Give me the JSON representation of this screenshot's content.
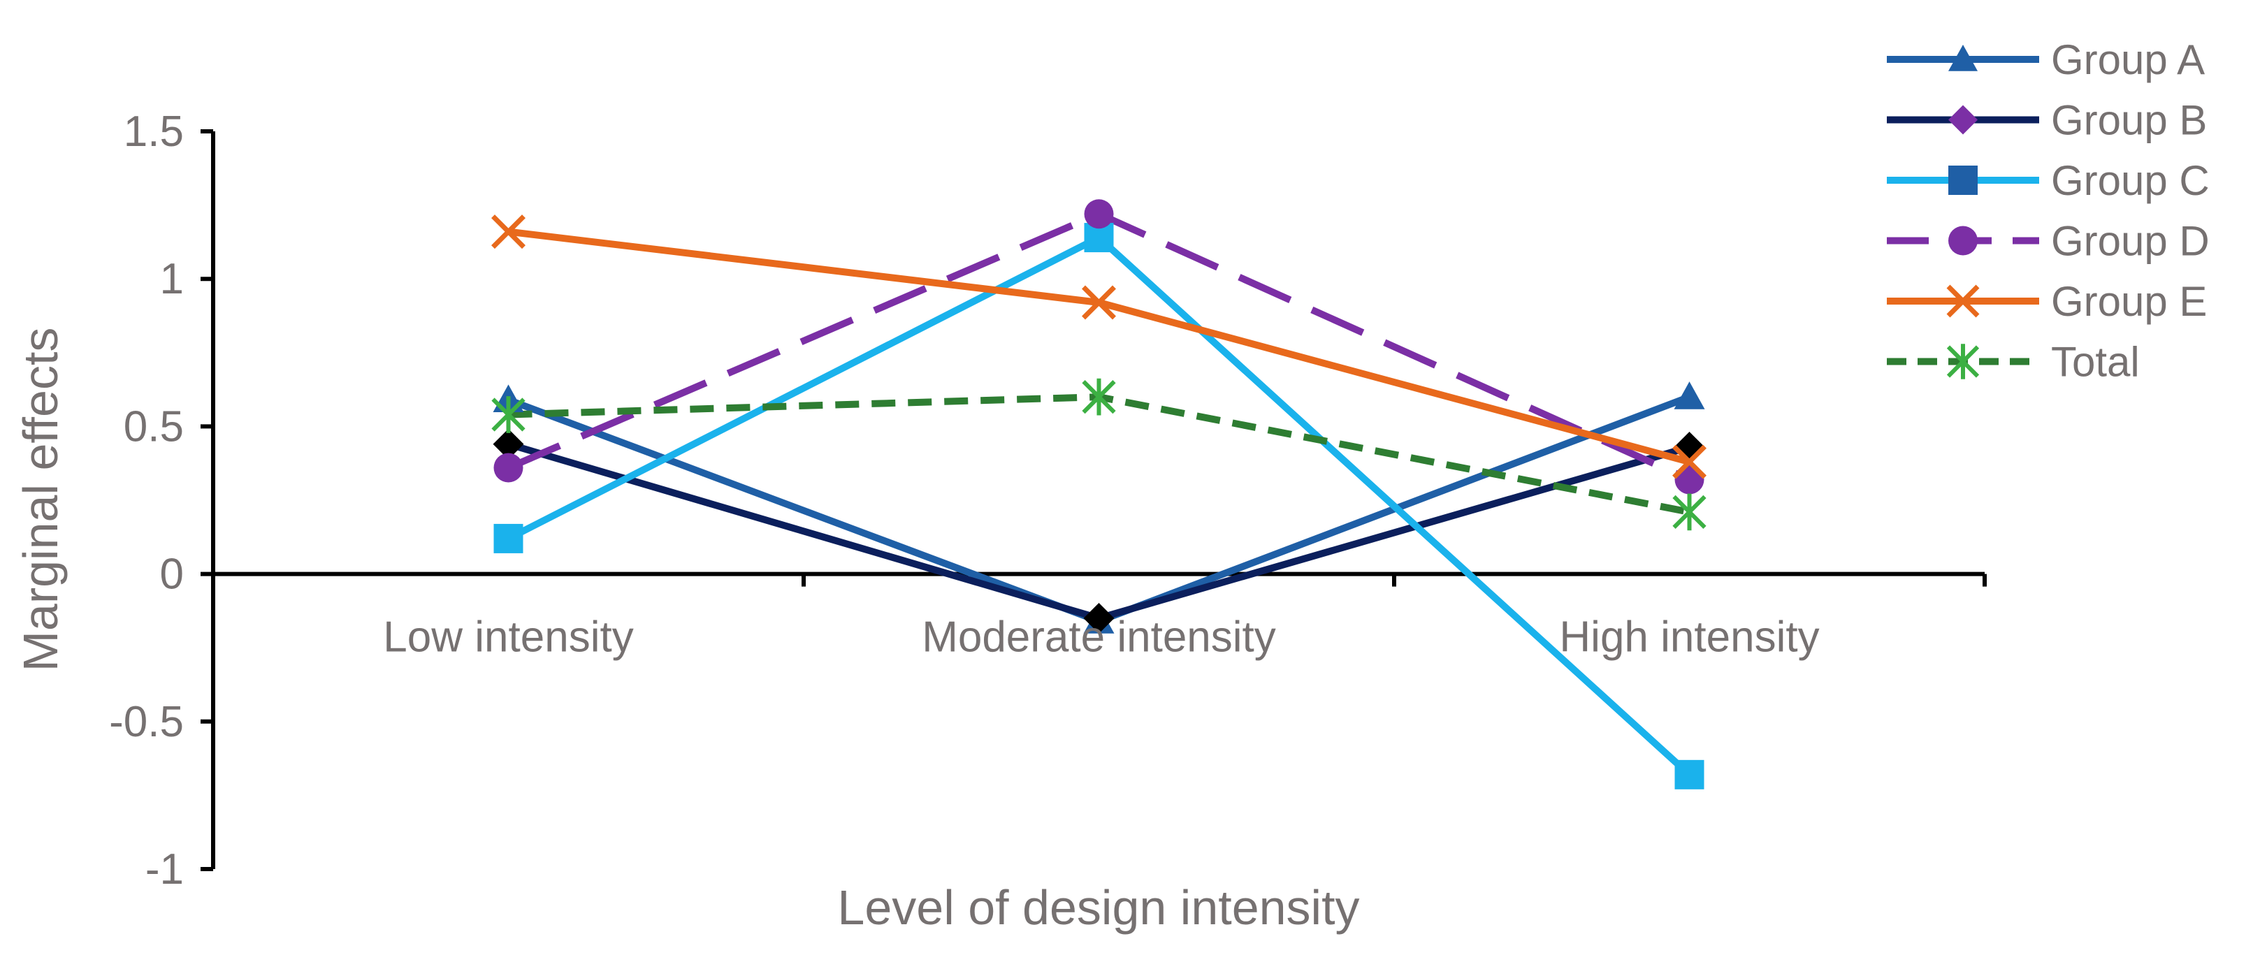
{
  "chart_data": {
    "type": "line",
    "title": "",
    "xlabel": "Level of design intensity",
    "ylabel": "Marginal effects",
    "categories": [
      "Low intensity",
      "Moderate intensity",
      "High intensity"
    ],
    "ylim": [
      -1,
      1.5
    ],
    "yticks": [
      {
        "value": 1.5,
        "label": "1.5"
      },
      {
        "value": 1,
        "label": "1"
      },
      {
        "value": 0.5,
        "label": "0.5"
      },
      {
        "value": 0,
        "label": "0"
      },
      {
        "value": -0.5,
        "label": "-0.5"
      },
      {
        "value": -1,
        "label": "-1"
      }
    ],
    "grid": false,
    "legend_position": "top-right",
    "series": [
      {
        "name": "Group A",
        "values": [
          0.59,
          -0.16,
          0.6
        ],
        "color": "#1f5fa6",
        "marker": "triangle",
        "dash": "solid"
      },
      {
        "name": "Group B",
        "values": [
          0.44,
          -0.15,
          0.43
        ],
        "color": "#0b1f5c",
        "marker": "diamond",
        "marker_color": "#000000",
        "legend_marker_color": "#7b2fa5",
        "dash": "solid"
      },
      {
        "name": "Group C",
        "values": [
          0.12,
          1.14,
          -0.68
        ],
        "color": "#1ab2ec",
        "marker": "square",
        "marker_color": "#1ab2ec",
        "legend_marker_color": "#1f5fa6",
        "dash": "solid"
      },
      {
        "name": "Group D",
        "values": [
          0.36,
          1.22,
          0.32
        ],
        "color": "#7b2fa5",
        "marker": "circle",
        "dash": "dashed"
      },
      {
        "name": "Group E",
        "values": [
          1.16,
          0.92,
          0.38
        ],
        "color": "#e8691c",
        "marker": "x",
        "dash": "solid"
      },
      {
        "name": "Total",
        "values": [
          0.54,
          0.6,
          0.21
        ],
        "color": "#2e7d32",
        "marker": "star",
        "marker_color": "#3cb043",
        "dash": "dotted"
      }
    ]
  }
}
